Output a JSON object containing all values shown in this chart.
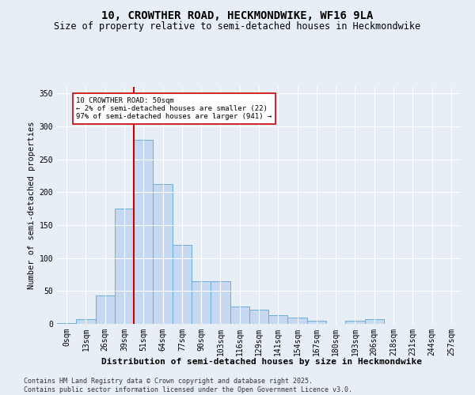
{
  "title": "10, CROWTHER ROAD, HECKMONDWIKE, WF16 9LA",
  "subtitle": "Size of property relative to semi-detached houses in Heckmondwike",
  "xlabel": "Distribution of semi-detached houses by size in Heckmondwike",
  "ylabel": "Number of semi-detached properties",
  "bar_color": "#c5d8f0",
  "bar_edge_color": "#6aaed6",
  "vline_color": "#cc0000",
  "vline_x_index": 4,
  "annotation_text": "10 CROWTHER ROAD: 50sqm\n← 2% of semi-detached houses are smaller (22)\n97% of semi-detached houses are larger (941) →",
  "annotation_box_color": "#ffffff",
  "annotation_box_edge": "#cc0000",
  "categories": [
    "0sqm",
    "13sqm",
    "26sqm",
    "39sqm",
    "51sqm",
    "64sqm",
    "77sqm",
    "90sqm",
    "103sqm",
    "116sqm",
    "129sqm",
    "141sqm",
    "154sqm",
    "167sqm",
    "180sqm",
    "193sqm",
    "206sqm",
    "218sqm",
    "231sqm",
    "244sqm",
    "257sqm"
  ],
  "values": [
    1,
    7,
    43,
    175,
    280,
    212,
    120,
    65,
    65,
    27,
    22,
    13,
    10,
    5,
    0,
    5,
    7,
    0,
    0,
    0,
    0
  ],
  "ylim": [
    0,
    360
  ],
  "yticks": [
    0,
    50,
    100,
    150,
    200,
    250,
    300,
    350
  ],
  "background_color": "#e8eef6",
  "plot_background": "#e8eef6",
  "footer": "Contains HM Land Registry data © Crown copyright and database right 2025.\nContains public sector information licensed under the Open Government Licence v3.0.",
  "title_fontsize": 10,
  "subtitle_fontsize": 8.5,
  "xlabel_fontsize": 8,
  "ylabel_fontsize": 7.5,
  "tick_fontsize": 7,
  "footer_fontsize": 6
}
